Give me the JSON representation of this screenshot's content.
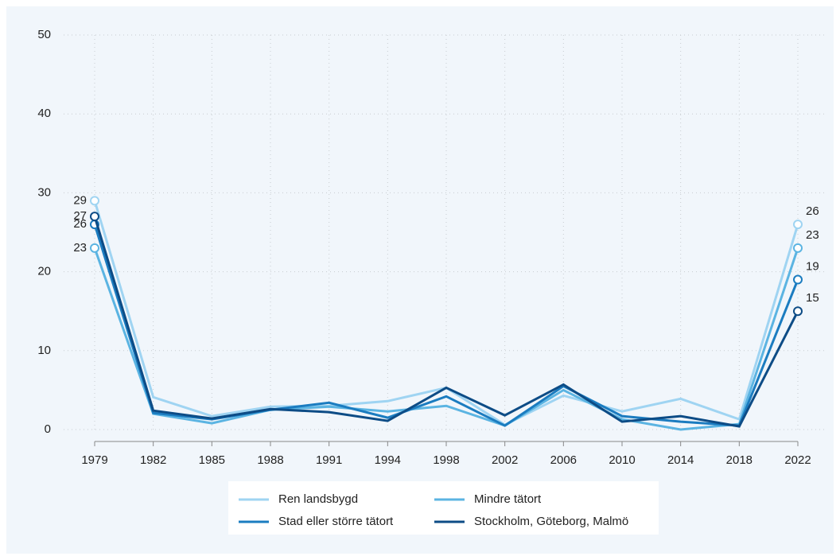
{
  "chart_data": {
    "type": "line",
    "categories": [
      "1979",
      "1982",
      "1985",
      "1988",
      "1991",
      "1994",
      "1998",
      "2002",
      "2006",
      "2010",
      "2014",
      "2018",
      "2022"
    ],
    "series": [
      {
        "name": "Ren landsbygd",
        "color": "#9fd4f2",
        "values": [
          29,
          4.1,
          1.7,
          2.9,
          3.0,
          3.6,
          5.3,
          0.6,
          4.3,
          2.3,
          3.9,
          1.3,
          26
        ]
      },
      {
        "name": "Mindre tätort",
        "color": "#5bb4e2",
        "values": [
          23,
          2.0,
          0.8,
          2.5,
          2.9,
          2.3,
          3.0,
          0.5,
          5.0,
          1.3,
          0.0,
          0.7,
          23
        ]
      },
      {
        "name": "Stad eller större tätort",
        "color": "#1b7cc0",
        "values": [
          26,
          2.1,
          1.3,
          2.5,
          3.4,
          1.5,
          4.2,
          0.5,
          5.5,
          1.7,
          1.0,
          0.5,
          19
        ]
      },
      {
        "name": "Stockholm, Göteborg, Malmö",
        "color": "#0d4c86",
        "values": [
          27,
          2.4,
          1.4,
          2.6,
          2.2,
          1.1,
          5.3,
          1.8,
          5.7,
          1.0,
          1.7,
          0.4,
          15
        ]
      }
    ],
    "ylim": [
      0,
      50
    ],
    "yticks": [
      0,
      10,
      20,
      30,
      40,
      50
    ],
    "grid": true,
    "legend": "bottom"
  }
}
